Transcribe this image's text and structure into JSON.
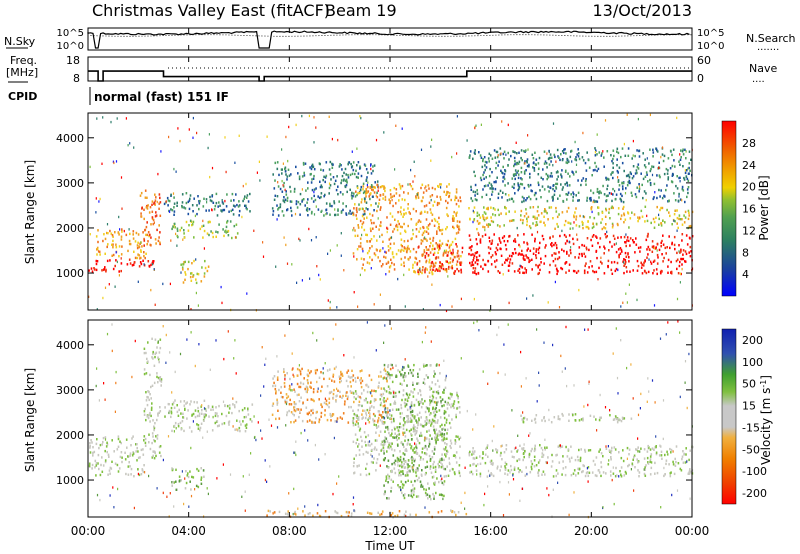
{
  "header": {
    "title": "Christmas Valley East (fitACF)",
    "beam": "Beam 19",
    "date": "13/Oct/2013"
  },
  "nsky_panel": {
    "left_label": "N.Sky",
    "left_ticks": [
      "10^5",
      "10^0"
    ],
    "right_ticks": [
      "10^5",
      "10^0"
    ],
    "right_label": "N.Search",
    "right_legend": "......."
  },
  "freq_panel": {
    "left_label_1": "Freq.",
    "left_label_2": "[MHz]",
    "left_ticks": [
      "18",
      "8"
    ],
    "right_ticks": [
      "60",
      "0"
    ],
    "right_label": "Nave",
    "right_legend": "....",
    "freq_steps": [
      [
        0,
        12.5
      ],
      [
        0.4,
        8
      ],
      [
        0.6,
        12.5
      ],
      [
        2.8,
        12.5
      ],
      [
        3.0,
        10
      ],
      [
        6.7,
        10
      ],
      [
        6.8,
        8
      ],
      [
        7.0,
        10
      ],
      [
        15.0,
        10
      ],
      [
        15.05,
        12.5
      ],
      [
        24,
        12.5
      ]
    ]
  },
  "cpid": {
    "label": "CPID",
    "program": "normal (fast) 151 IF"
  },
  "chart_data": [
    {
      "type": "heatmap",
      "name": "power",
      "ylabel": "Slant Range [km]",
      "yticks": [
        "1000",
        "2000",
        "3000",
        "4000"
      ],
      "ylim": [
        180,
        4550
      ],
      "xlim": [
        0,
        24
      ],
      "colorbar_label": "Power [dB]",
      "colorbar_ticks": [
        "4",
        "8",
        "12",
        "16",
        "20",
        "24",
        "28"
      ],
      "colors": [
        "#1a1aff",
        "#1a4fa0",
        "#2d7d6a",
        "#4da060",
        "#7fc040",
        "#f0d020",
        "#f0a020",
        "#f07020",
        "#f03010",
        "#ff0000"
      ],
      "features": [
        {
          "t0": 0.0,
          "t1": 2.6,
          "r0": 1050,
          "r1": 1350,
          "level": 9
        },
        {
          "t0": 0.3,
          "t1": 2.4,
          "r0": 1350,
          "r1": 2000,
          "level": 6
        },
        {
          "t0": 2.0,
          "t1": 2.9,
          "r0": 1600,
          "r1": 2900,
          "level": 7
        },
        {
          "t0": 3.0,
          "t1": 6.5,
          "r0": 2300,
          "r1": 2800,
          "level": 2
        },
        {
          "t0": 3.3,
          "t1": 6.0,
          "r0": 1800,
          "r1": 2200,
          "level": 4
        },
        {
          "t0": 3.6,
          "t1": 4.8,
          "r0": 800,
          "r1": 1300,
          "level": 5
        },
        {
          "t0": 7.3,
          "t1": 11.5,
          "r0": 2300,
          "r1": 3500,
          "level": 2
        },
        {
          "t0": 10.5,
          "t1": 14.8,
          "r0": 1000,
          "r1": 3000,
          "level": 6
        },
        {
          "t0": 13.0,
          "t1": 14.9,
          "r0": 1000,
          "r1": 1700,
          "level": 8
        },
        {
          "t0": 15.1,
          "t1": 24.0,
          "r0": 1000,
          "r1": 1900,
          "level": 9
        },
        {
          "t0": 15.1,
          "t1": 24.0,
          "r0": 2000,
          "r1": 2500,
          "level": 5
        },
        {
          "t0": 15.1,
          "t1": 24.0,
          "r0": 2600,
          "r1": 3800,
          "level": 2
        }
      ]
    },
    {
      "type": "heatmap",
      "name": "velocity",
      "ylabel": "Slant Range [km]",
      "yticks": [
        "1000",
        "2000",
        "3000",
        "4000"
      ],
      "ylim": [
        180,
        4550
      ],
      "xlim": [
        0,
        24
      ],
      "xticks": [
        "00:00",
        "04:00",
        "08:00",
        "12:00",
        "16:00",
        "20:00",
        "00:00"
      ],
      "xlabel": "Time UT",
      "colorbar_label": "Velocity [m s",
      "colorbar_label_sup": "-1",
      "colorbar_label_end": "]",
      "colorbar_ticks": [
        "200",
        "100",
        "50",
        "15",
        "-15",
        "-50",
        "-100",
        "-200"
      ],
      "colors": [
        "#2030c0",
        "#3050b0",
        "#5a9a40",
        "#80c040",
        "#c8c8c0",
        "#c8c8c0",
        "#f0b040",
        "#f08020",
        "#f04010",
        "#ff0000"
      ],
      "features": [
        {
          "t0": 0.0,
          "t1": 2.2,
          "r0": 1100,
          "r1": 2000,
          "level": 4
        },
        {
          "t0": 2.2,
          "t1": 2.9,
          "r0": 1500,
          "r1": 4200,
          "level": 4
        },
        {
          "t0": 3.3,
          "t1": 4.6,
          "r0": 800,
          "r1": 1300,
          "level": 3
        },
        {
          "t0": 3.0,
          "t1": 6.5,
          "r0": 2100,
          "r1": 2800,
          "level": 4
        },
        {
          "t0": 7.3,
          "t1": 12.0,
          "r0": 2300,
          "r1": 3500,
          "level": 6
        },
        {
          "t0": 10.5,
          "t1": 14.8,
          "r0": 1100,
          "r1": 3000,
          "level": 4
        },
        {
          "t0": 11.7,
          "t1": 14.2,
          "r0": 600,
          "r1": 3600,
          "level": 3
        },
        {
          "t0": 15.1,
          "t1": 24.0,
          "r0": 1100,
          "r1": 1800,
          "level": 4
        },
        {
          "t0": 17.0,
          "t1": 22.0,
          "r0": 2300,
          "r1": 2500,
          "level": 4
        },
        {
          "t0": 7.0,
          "t1": 15.0,
          "r0": 200,
          "r1": 350,
          "level": 6
        }
      ]
    }
  ]
}
